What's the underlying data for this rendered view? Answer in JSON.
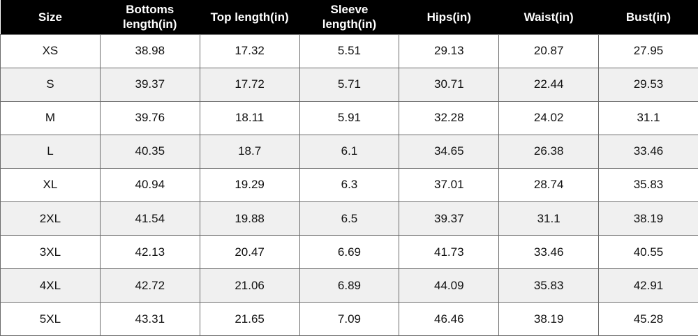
{
  "table": {
    "headers": [
      {
        "lines": [
          "Size"
        ]
      },
      {
        "lines": [
          "Bottoms",
          "length(in)"
        ]
      },
      {
        "lines": [
          "Top length(in)"
        ]
      },
      {
        "lines": [
          "Sleeve",
          "length(in)"
        ]
      },
      {
        "lines": [
          "Hips(in)"
        ]
      },
      {
        "lines": [
          "Waist(in)"
        ]
      },
      {
        "lines": [
          "Bust(in)"
        ]
      }
    ],
    "rows": [
      [
        "XS",
        "38.98",
        "17.32",
        "5.51",
        "29.13",
        "20.87",
        "27.95"
      ],
      [
        "S",
        "39.37",
        "17.72",
        "5.71",
        "30.71",
        "22.44",
        "29.53"
      ],
      [
        "M",
        "39.76",
        "18.11",
        "5.91",
        "32.28",
        "24.02",
        "31.1"
      ],
      [
        "L",
        "40.35",
        "18.7",
        "6.1",
        "34.65",
        "26.38",
        "33.46"
      ],
      [
        "XL",
        "40.94",
        "19.29",
        "6.3",
        "37.01",
        "28.74",
        "35.83"
      ],
      [
        "2XL",
        "41.54",
        "19.88",
        "6.5",
        "39.37",
        "31.1",
        "38.19"
      ],
      [
        "3XL",
        "42.13",
        "20.47",
        "6.69",
        "41.73",
        "33.46",
        "40.55"
      ],
      [
        "4XL",
        "42.72",
        "21.06",
        "6.89",
        "44.09",
        "35.83",
        "42.91"
      ],
      [
        "5XL",
        "43.31",
        "21.65",
        "7.09",
        "46.46",
        "38.19",
        "45.28"
      ]
    ]
  },
  "colors": {
    "header_background": "#000000",
    "header_text": "#ffffff",
    "alternate_row": "#f0f0f0",
    "grid_line": "#6b6b6b"
  }
}
